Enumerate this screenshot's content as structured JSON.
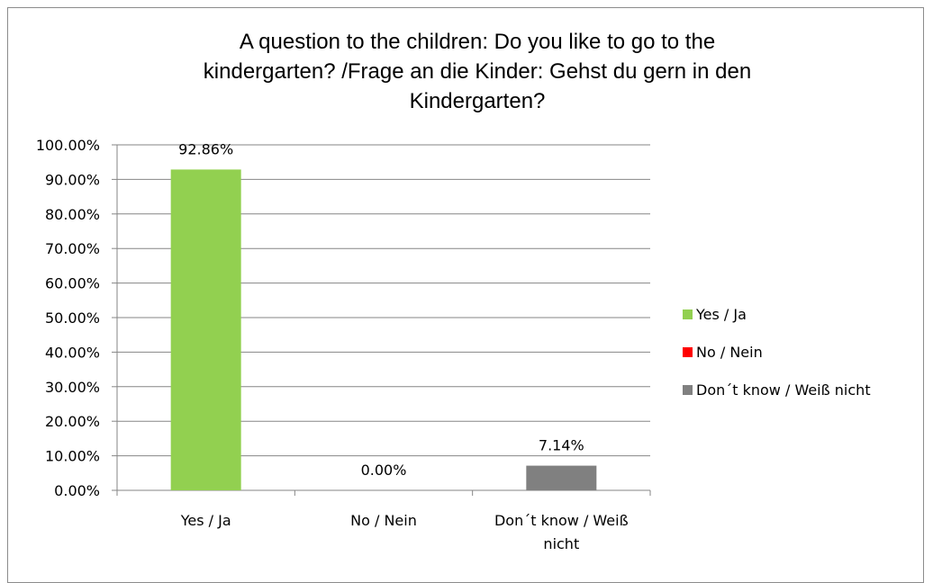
{
  "chart_data": {
    "type": "bar",
    "title": "A question to the children: Do you like to go to the kindergarten? /Frage an die Kinder: Gehst du gern in den Kindergarten?",
    "title_lines": [
      "A question to the children: Do you like to go to the",
      "kindergarten? /Frage an die Kinder: Gehst du gern in den",
      "Kindergarten?"
    ],
    "categories": [
      "Yes / Ja",
      "No / Nein",
      "Don´t know / Weiß nicht"
    ],
    "category_lines": [
      [
        "Yes / Ja"
      ],
      [
        "No / Nein"
      ],
      [
        "Don´t know / Weiß",
        "nicht"
      ]
    ],
    "values": [
      92.86,
      0.0,
      7.14
    ],
    "data_labels": [
      "92.86%",
      "0.00%",
      "7.14%"
    ],
    "colors": [
      "#92d050",
      "#ff0000",
      "#808080"
    ],
    "ylim": [
      0,
      100
    ],
    "ytick_labels": [
      "0.00%",
      "10.00%",
      "20.00%",
      "30.00%",
      "40.00%",
      "50.00%",
      "60.00%",
      "70.00%",
      "80.00%",
      "90.00%",
      "100.00%"
    ],
    "xlabel": "",
    "ylabel": "",
    "grid": true,
    "legend_position": "right",
    "legend": [
      "Yes / Ja",
      "No / Nein",
      "Don´t know / Weiß nicht"
    ]
  }
}
